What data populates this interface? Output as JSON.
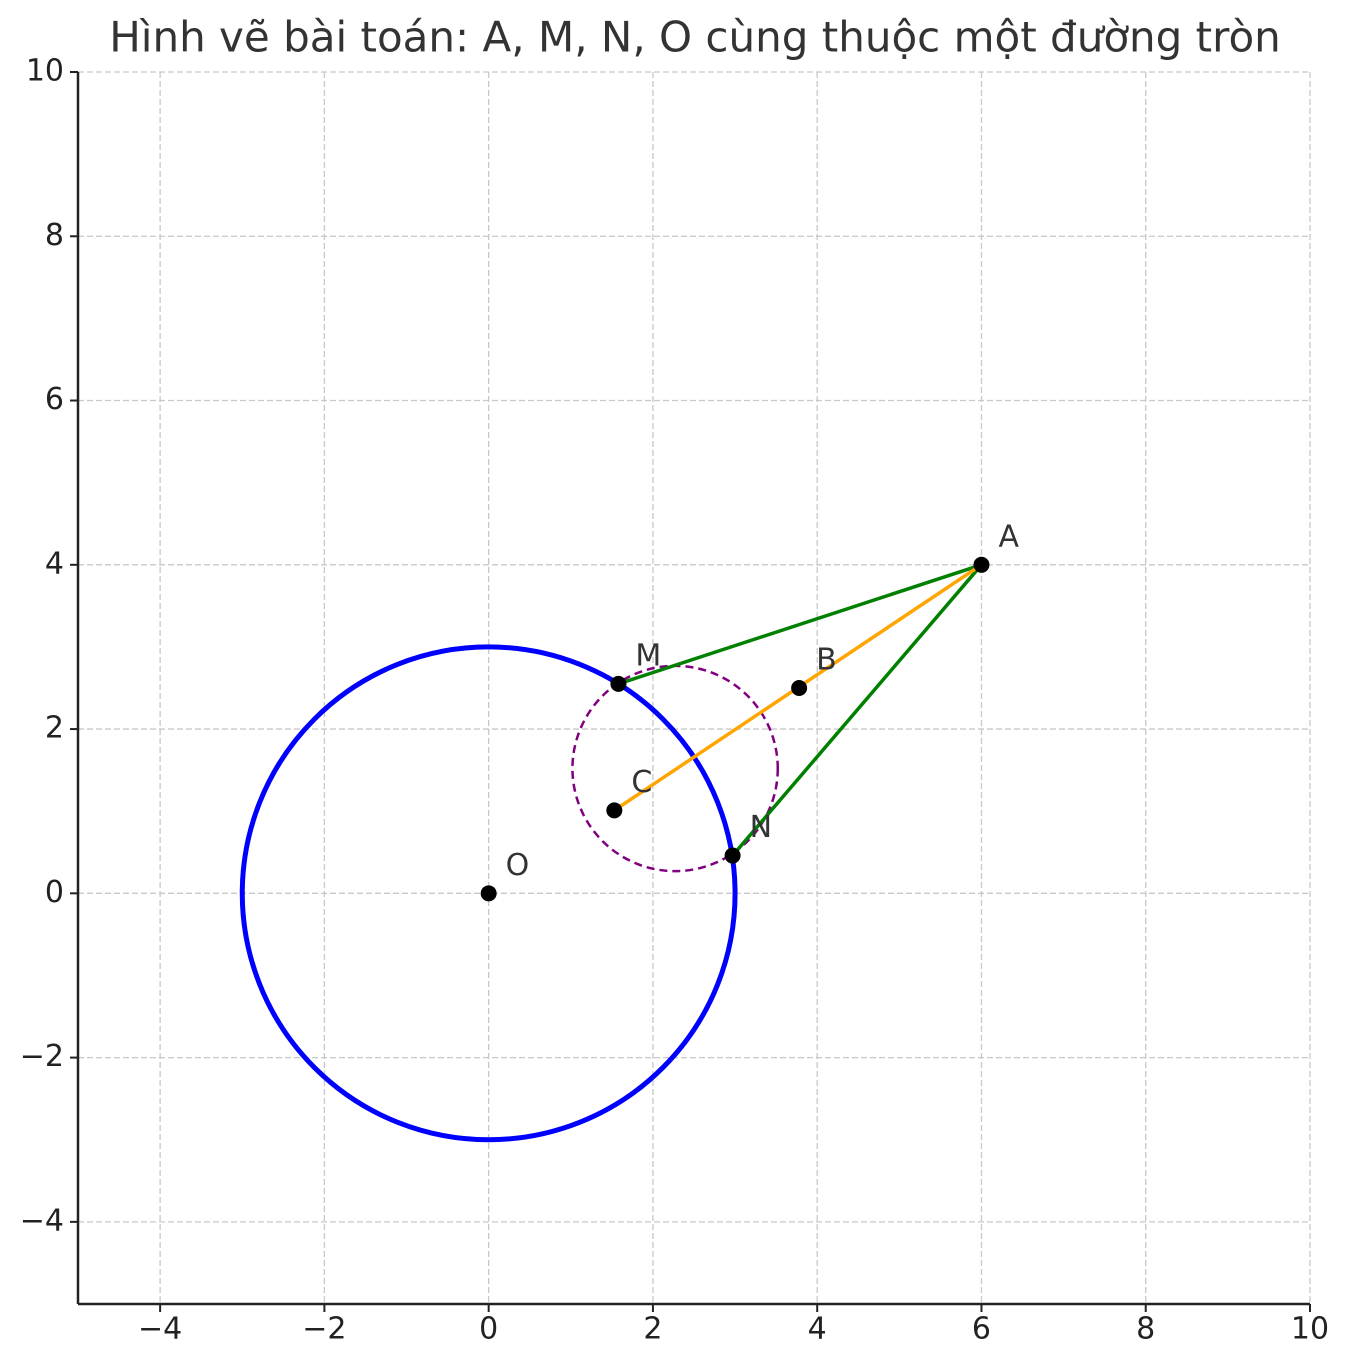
{
  "chart_data": {
    "type": "geometry",
    "title": "Hình vẽ bài toán: A, M, N, O cùng thuộc một đường tròn",
    "xlim": [
      -5,
      10
    ],
    "ylim": [
      -5,
      10
    ],
    "xticks": [
      {
        "value": -4,
        "label": "−4"
      },
      {
        "value": -2,
        "label": "−2"
      },
      0,
      2,
      4,
      6,
      8,
      10
    ],
    "yticks": [
      {
        "value": -4,
        "label": "−4"
      },
      {
        "value": -2,
        "label": "−2"
      },
      0,
      2,
      4,
      6,
      8,
      10
    ],
    "grid": true,
    "circles": [
      {
        "center": [
          0,
          0
        ],
        "radius": 3,
        "color": "#0000ff",
        "dashed": false
      },
      {
        "center": [
          2.27,
          1.52
        ],
        "radius": 1.25,
        "color": "#800080",
        "dashed": true
      }
    ],
    "segments": [
      {
        "x": [
          6,
          1.58
        ],
        "y": [
          4,
          2.55
        ],
        "color": "#008000"
      },
      {
        "x": [
          6,
          2.97
        ],
        "y": [
          4,
          0.46
        ],
        "color": "#008000"
      },
      {
        "x": [
          1.53,
          6
        ],
        "y": [
          1.01,
          4
        ],
        "color": "#ffa500"
      }
    ],
    "points": [
      {
        "name": "O",
        "x": 0,
        "y": 0
      },
      {
        "name": "A",
        "x": 6,
        "y": 4
      },
      {
        "name": "M",
        "x": 1.58,
        "y": 2.55
      },
      {
        "name": "N",
        "x": 2.97,
        "y": 0.46
      },
      {
        "name": "C",
        "x": 1.53,
        "y": 1.01
      },
      {
        "name": "B",
        "x": 3.78,
        "y": 2.5
      }
    ]
  }
}
